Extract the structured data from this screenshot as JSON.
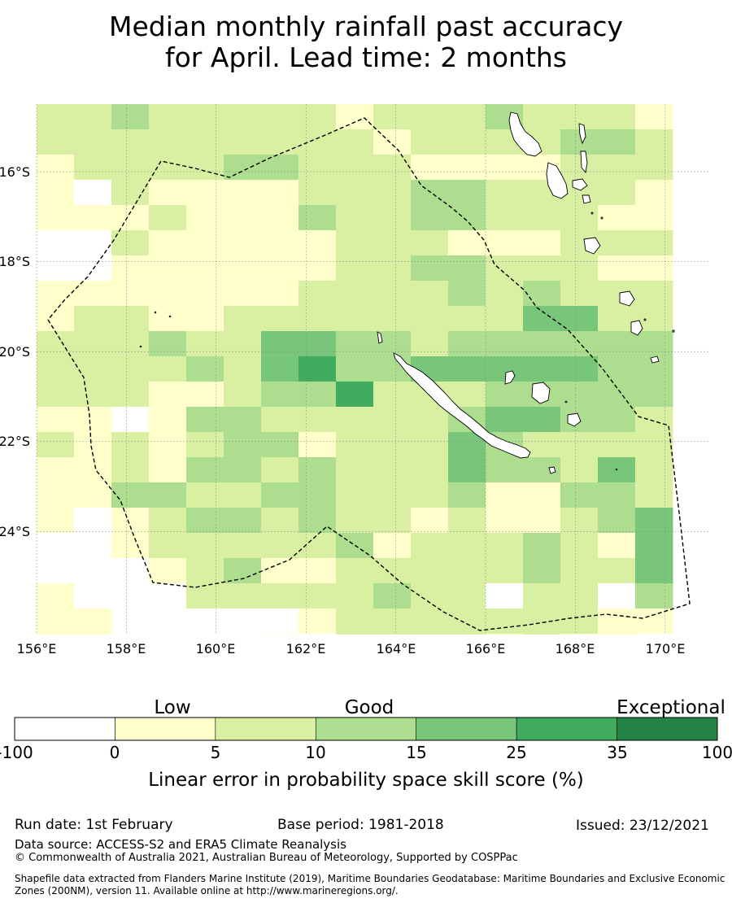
{
  "title": {
    "line1": "Median monthly rainfall past accuracy",
    "line2": "for April. Lead time: 2 months"
  },
  "map": {
    "lon_range": [
      156,
      171
    ],
    "lat_range": [
      -14.7,
      -26.5
    ],
    "lon_ticks": [
      156,
      158,
      160,
      162,
      164,
      166,
      168,
      170
    ],
    "lon_tick_labels": [
      "156°E",
      "158°E",
      "160°E",
      "162°E",
      "164°E",
      "166°E",
      "168°E",
      "170°E"
    ],
    "lat_ticks": [
      -16,
      -18,
      -20,
      -22,
      -24
    ],
    "lat_tick_labels": [
      "16°S",
      "18°S",
      "20°S",
      "22°S",
      "24°S"
    ],
    "grid_cell_degrees": 0.833,
    "boundary": "EEZ (dashed)",
    "skill_grid_legend": "category index per cell: 0 <0, 1 0–5, 2 5–10, 3 10–15, 4 15–25, 5 25–35, 6 35–100",
    "skill_grid": [
      "22322222122232221",
      "22222222212222332",
      "12222332221111222",
      "10211112223322221",
      "11121113223322211",
      "00211111222111222",
      "00111111223322211",
      "11111112222323222",
      "12211222222224422",
      "22232244332333333",
      "22223245334444433",
      "22211233522233333",
      "11013322222344332",
      "21212331222432222",
      "11213323222433242",
      "11332233222311332",
      "10123323221211234",
      "00122222312223214",
      "00012311222223224",
      "10002222232202203",
      "11000001222222211",
      "11000010222212110",
      "12220013332211202",
      "21000011212210010",
      "11100013212221110"
    ]
  },
  "colorbar": {
    "categories": [
      "Low",
      "Good",
      "Exceptional"
    ],
    "boundaries": [
      "-100",
      "0",
      "5",
      "10",
      "15",
      "25",
      "35",
      "100"
    ],
    "colors": [
      "#ffffff",
      "#ffffcc",
      "#d9f0a3",
      "#addd8e",
      "#78c679",
      "#41ab5d",
      "#238443"
    ],
    "label": "Linear error in probability space skill score (%)"
  },
  "footer": {
    "run_date": "Run date: 1st February",
    "base_period": "Base period: 1981-2018",
    "issued": "Issued: 23/12/2021",
    "data_source": "Data source: ACCESS-S2 and ERA5 Climate Reanalysis",
    "copyright": "© Commonwealth of Australia 2021, Australian Bureau of Meteorology, Supported by COSPPac",
    "shapefile_note": "Shapefile data extracted from Flanders Marine Institute (2019), Maritime Boundaries Geodatabase: Maritime Boundaries and Exclusive Economic Zones (200NM), version 11. Available online at http://www.marineregions.org/."
  }
}
